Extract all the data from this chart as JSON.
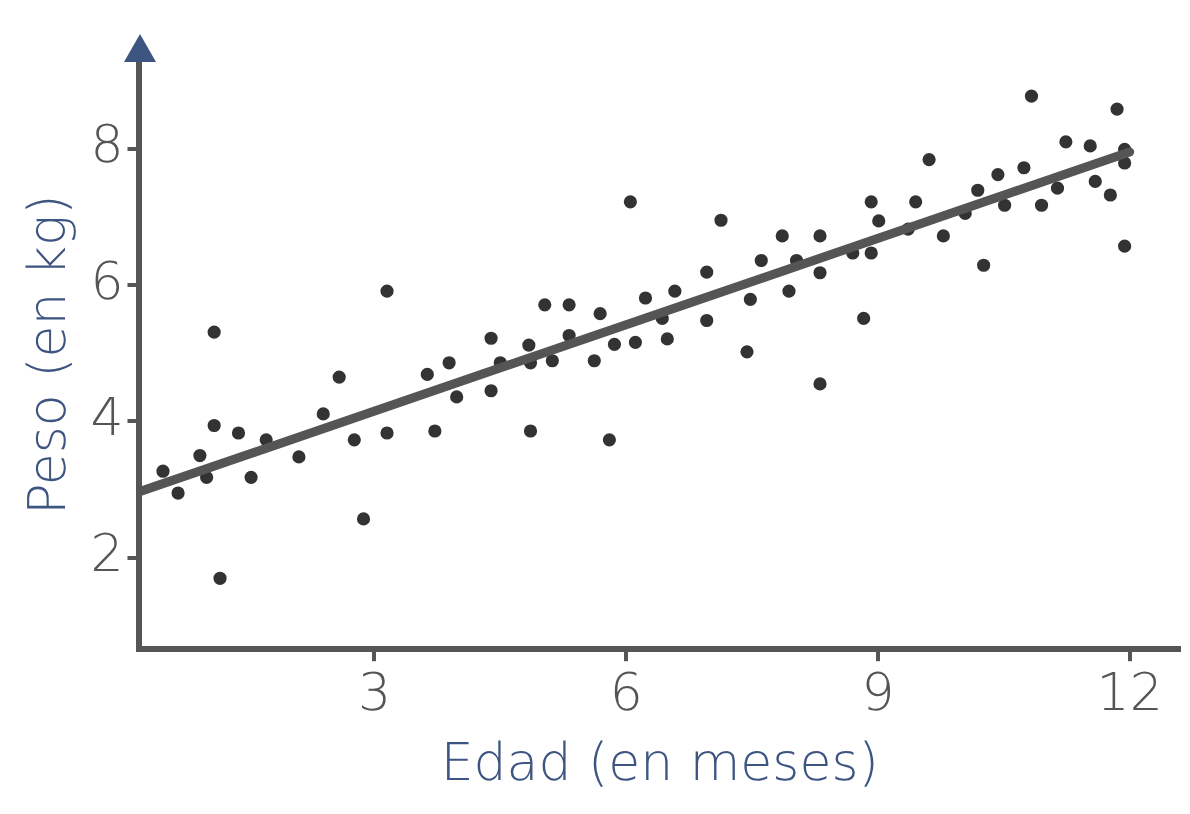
{
  "chart_data": {
    "type": "scatter",
    "xlabel": "Edad (en meses)",
    "ylabel": "Peso (en kg)",
    "xlim": [
      0.2,
      12.6
    ],
    "ylim": [
      0.66,
      9.3
    ],
    "xticks": [
      3,
      6,
      9,
      12
    ],
    "yticks": [
      2,
      4,
      6,
      8
    ],
    "grid": false,
    "series": [
      {
        "color": "#333333",
        "marker": "circle",
        "x": [
          0.48,
          0.66,
          0.92,
          1.0,
          1.09,
          1.09,
          1.16,
          1.38,
          1.53,
          1.71,
          2.1,
          2.39,
          2.58,
          2.76,
          2.87,
          3.15,
          3.15,
          3.63,
          3.72,
          3.89,
          3.98,
          4.39,
          4.39,
          4.5,
          4.84,
          4.86,
          4.86,
          5.03,
          5.12,
          5.32,
          5.32,
          5.62,
          5.69,
          5.8,
          5.86,
          6.05,
          6.11,
          6.23,
          6.43,
          6.49,
          6.58,
          6.96,
          6.96,
          7.13,
          7.44,
          7.48,
          7.61,
          7.86,
          7.94,
          8.03,
          8.31,
          8.31,
          8.31,
          8.7,
          8.83,
          8.92,
          8.92,
          9.01,
          9.36,
          9.45,
          9.61,
          9.78,
          10.04,
          10.19,
          10.26,
          10.43,
          10.51,
          10.74,
          10.83,
          10.95,
          11.14,
          11.24,
          11.53,
          11.59,
          11.77,
          11.85,
          11.94,
          11.94,
          11.94
        ],
        "values": [
          3.27,
          2.95,
          3.5,
          3.18,
          5.31,
          3.94,
          1.7,
          3.83,
          3.18,
          3.73,
          3.48,
          4.11,
          4.65,
          3.73,
          2.57,
          5.91,
          3.83,
          4.69,
          3.86,
          4.86,
          4.36,
          5.22,
          4.45,
          4.86,
          5.12,
          4.86,
          3.86,
          5.71,
          4.89,
          5.71,
          5.26,
          4.89,
          5.58,
          3.73,
          5.13,
          7.22,
          5.16,
          5.81,
          5.51,
          5.21,
          5.91,
          5.48,
          6.19,
          6.95,
          5.02,
          5.79,
          6.36,
          6.72,
          5.91,
          6.36,
          6.72,
          6.18,
          4.55,
          6.47,
          5.51,
          7.22,
          6.47,
          6.94,
          6.82,
          7.22,
          7.84,
          6.72,
          7.05,
          7.39,
          6.29,
          7.62,
          7.17,
          7.72,
          8.77,
          7.17,
          7.42,
          8.1,
          8.04,
          7.52,
          7.32,
          8.58,
          7.99,
          7.79,
          6.57
        ]
      },
      {
        "type": "line",
        "marker": "none",
        "color": "#555555",
        "x": [
          0.2,
          12
        ],
        "values": [
          2.97,
          7.95
        ]
      }
    ]
  }
}
